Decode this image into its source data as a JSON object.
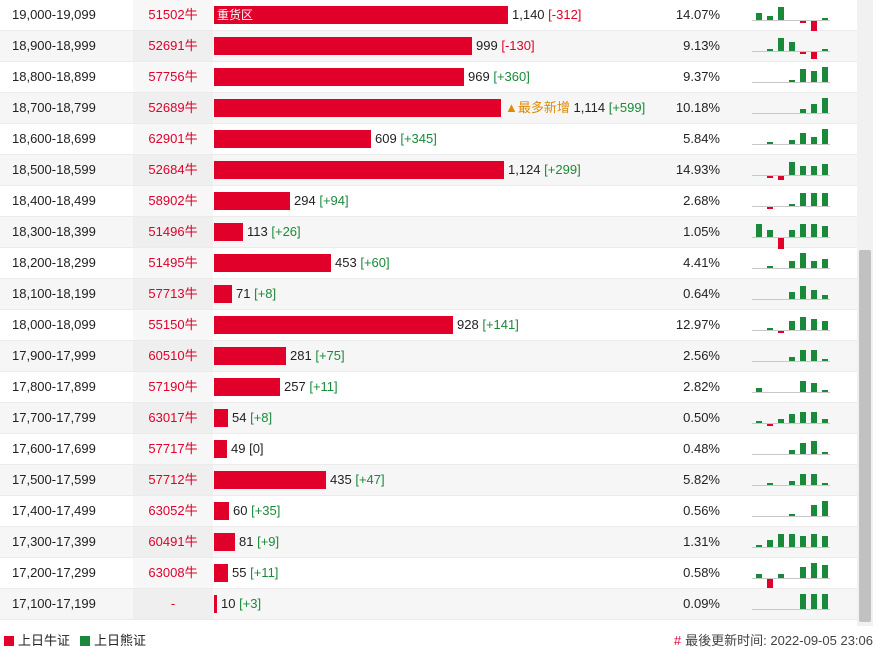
{
  "table": {
    "rows": [
      {
        "range": "19,000-19,099",
        "code": "51502牛",
        "value": "1,140",
        "change": "[-312]",
        "change_sign": "neg",
        "bar_label": "重货区",
        "flag": "",
        "pct": "14.07%",
        "spark": [
          3,
          2,
          6,
          0,
          -1,
          -5,
          1
        ]
      },
      {
        "range": "18,900-18,999",
        "code": "52691牛",
        "value": "999",
        "change": "[-130]",
        "change_sign": "neg",
        "bar_label": "",
        "flag": "",
        "pct": "9.13%",
        "spark": [
          0,
          1,
          6,
          4,
          -1,
          -3,
          1
        ]
      },
      {
        "range": "18,800-18,899",
        "code": "57756牛",
        "value": "969",
        "change": "[+360]",
        "change_sign": "pos",
        "bar_label": "",
        "flag": "",
        "pct": "9.37%",
        "spark": [
          0,
          0,
          0,
          1,
          6,
          5,
          7
        ]
      },
      {
        "range": "18,700-18,799",
        "code": "52689牛",
        "value": "1,114",
        "change": "[+599]",
        "change_sign": "pos",
        "bar_label": "",
        "flag": "▲最多新增",
        "pct": "10.18%",
        "spark": [
          0,
          0,
          0,
          0,
          2,
          4,
          7
        ]
      },
      {
        "range": "18,600-18,699",
        "code": "62901牛",
        "value": "609",
        "change": "[+345]",
        "change_sign": "pos",
        "bar_label": "",
        "flag": "",
        "pct": "5.84%",
        "spark": [
          0,
          1,
          0,
          2,
          5,
          3,
          7
        ]
      },
      {
        "range": "18,500-18,599",
        "code": "52684牛",
        "value": "1,124",
        "change": "[+299]",
        "change_sign": "pos",
        "bar_label": "",
        "flag": "",
        "pct": "14.93%",
        "spark": [
          0,
          -1,
          -2,
          6,
          4,
          4,
          5
        ]
      },
      {
        "range": "18,400-18,499",
        "code": "58902牛",
        "value": "294",
        "change": "[+94]",
        "change_sign": "pos",
        "bar_label": "",
        "flag": "",
        "pct": "2.68%",
        "spark": [
          0,
          -1,
          0,
          1,
          6,
          6,
          6
        ]
      },
      {
        "range": "18,300-18,399",
        "code": "51496牛",
        "value": "113",
        "change": "[+26]",
        "change_sign": "pos",
        "bar_label": "",
        "flag": "",
        "pct": "1.05%",
        "spark": [
          6,
          3,
          -5,
          3,
          6,
          6,
          5
        ]
      },
      {
        "range": "18,200-18,299",
        "code": "51495牛",
        "value": "453",
        "change": "[+60]",
        "change_sign": "pos",
        "bar_label": "",
        "flag": "",
        "pct": "4.41%",
        "spark": [
          0,
          1,
          0,
          3,
          7,
          3,
          4
        ]
      },
      {
        "range": "18,100-18,199",
        "code": "57713牛",
        "value": "71",
        "change": "[+8]",
        "change_sign": "pos",
        "bar_label": "",
        "flag": "",
        "pct": "0.64%",
        "spark": [
          0,
          0,
          0,
          3,
          6,
          4,
          2
        ]
      },
      {
        "range": "18,000-18,099",
        "code": "55150牛",
        "value": "928",
        "change": "[+141]",
        "change_sign": "pos",
        "bar_label": "",
        "flag": "",
        "pct": "12.97%",
        "spark": [
          0,
          1,
          -1,
          4,
          6,
          5,
          4
        ]
      },
      {
        "range": "17,900-17,999",
        "code": "60510牛",
        "value": "281",
        "change": "[+75]",
        "change_sign": "pos",
        "bar_label": "",
        "flag": "",
        "pct": "2.56%",
        "spark": [
          0,
          0,
          0,
          2,
          5,
          5,
          1
        ]
      },
      {
        "range": "17,800-17,899",
        "code": "57190牛",
        "value": "257",
        "change": "[+11]",
        "change_sign": "pos",
        "bar_label": "",
        "flag": "",
        "pct": "2.82%",
        "spark": [
          2,
          0,
          0,
          0,
          5,
          4,
          1
        ]
      },
      {
        "range": "17,700-17,799",
        "code": "63017牛",
        "value": "54",
        "change": "[+8]",
        "change_sign": "pos",
        "bar_label": "",
        "flag": "",
        "pct": "0.50%",
        "spark": [
          1,
          -1,
          2,
          4,
          5,
          5,
          2
        ]
      },
      {
        "range": "17,600-17,699",
        "code": "57717牛",
        "value": "49",
        "change": "[0]",
        "change_sign": "none",
        "bar_label": "",
        "flag": "",
        "pct": "0.48%",
        "spark": [
          0,
          0,
          0,
          2,
          5,
          6,
          1
        ]
      },
      {
        "range": "17,500-17,599",
        "code": "57712牛",
        "value": "435",
        "change": "[+47]",
        "change_sign": "pos",
        "bar_label": "",
        "flag": "",
        "pct": "5.82%",
        "spark": [
          0,
          1,
          0,
          2,
          5,
          5,
          1
        ]
      },
      {
        "range": "17,400-17,499",
        "code": "63052牛",
        "value": "60",
        "change": "[+35]",
        "change_sign": "pos",
        "bar_label": "",
        "flag": "",
        "pct": "0.56%",
        "spark": [
          0,
          0,
          0,
          1,
          0,
          5,
          7
        ]
      },
      {
        "range": "17,300-17,399",
        "code": "60491牛",
        "value": "81",
        "change": "[+9]",
        "change_sign": "pos",
        "bar_label": "",
        "flag": "",
        "pct": "1.31%",
        "spark": [
          1,
          3,
          6,
          6,
          5,
          6,
          5
        ]
      },
      {
        "range": "17,200-17,299",
        "code": "63008牛",
        "value": "55",
        "change": "[+11]",
        "change_sign": "pos",
        "bar_label": "",
        "flag": "",
        "pct": "0.58%",
        "spark": [
          2,
          -4,
          2,
          0,
          5,
          7,
          6
        ]
      },
      {
        "range": "17,100-17,199",
        "code": "-",
        "value": "10",
        "change": "[+3]",
        "change_sign": "pos",
        "bar_label": "",
        "flag": "",
        "pct": "0.09%",
        "spark": [
          0,
          0,
          0,
          0,
          7,
          7,
          7
        ]
      }
    ]
  },
  "footer": {
    "legend_bull": "上日牛证",
    "legend_bear": "上日熊证",
    "hash": "#",
    "updated": "最後更新时间: 2022-09-05 23:06"
  },
  "colors": {
    "bull": "#e0002a",
    "bear": "#1a8a3a"
  }
}
